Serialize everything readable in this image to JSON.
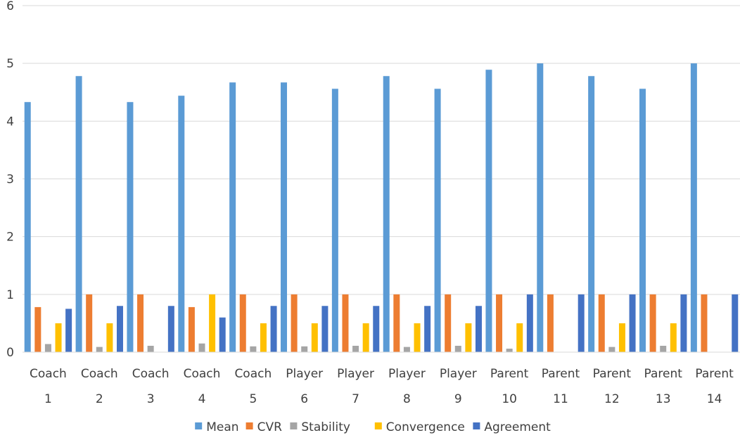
{
  "chart_data": {
    "type": "bar",
    "title": "",
    "xlabel": "",
    "ylabel": "",
    "ylim": [
      0,
      6
    ],
    "yticks": [
      0,
      1,
      2,
      3,
      4,
      5,
      6
    ],
    "grid": true,
    "legend_position": "bottom",
    "categories": [
      {
        "group": "Coach",
        "num": "1"
      },
      {
        "group": "Coach",
        "num": "2"
      },
      {
        "group": "Coach",
        "num": "3"
      },
      {
        "group": "Coach",
        "num": "4"
      },
      {
        "group": "Coach",
        "num": "5"
      },
      {
        "group": "Player",
        "num": "6"
      },
      {
        "group": "Player",
        "num": "7"
      },
      {
        "group": "Player",
        "num": "8"
      },
      {
        "group": "Player",
        "num": "9"
      },
      {
        "group": "Parent",
        "num": "10"
      },
      {
        "group": "Parent",
        "num": "11"
      },
      {
        "group": "Parent",
        "num": "12"
      },
      {
        "group": "Parent",
        "num": "13"
      },
      {
        "group": "Parent",
        "num": "14"
      }
    ],
    "series": [
      {
        "name": "Mean",
        "color": "#5B9BD5",
        "values": [
          4.33,
          4.78,
          4.33,
          4.44,
          4.67,
          4.67,
          4.56,
          4.78,
          4.56,
          4.89,
          5.0,
          4.78,
          4.56,
          5.0
        ]
      },
      {
        "name": "CVR",
        "color": "#ED7D31",
        "values": [
          0.78,
          1.0,
          1.0,
          0.78,
          1.0,
          1.0,
          1.0,
          1.0,
          1.0,
          1.0,
          1.0,
          1.0,
          1.0,
          1.0
        ]
      },
      {
        "name": "Stability",
        "color": "#A5A5A5",
        "values": [
          0.14,
          0.09,
          0.11,
          0.15,
          0.1,
          0.1,
          0.11,
          0.09,
          0.11,
          0.06,
          0,
          0.09,
          0.11,
          0
        ]
      },
      {
        "name": "Convergence",
        "color": "#FFC000",
        "values": [
          0.5,
          0.5,
          0,
          1.0,
          0.5,
          0.5,
          0.5,
          0.5,
          0.5,
          0.5,
          0,
          0.5,
          0.5,
          0
        ]
      },
      {
        "name": "Agreement",
        "color": "#4472C4",
        "values": [
          0.75,
          0.8,
          0.8,
          0.6,
          0.8,
          0.8,
          0.8,
          0.8,
          0.8,
          1.0,
          1.0,
          1.0,
          1.0,
          1.0
        ]
      }
    ]
  }
}
